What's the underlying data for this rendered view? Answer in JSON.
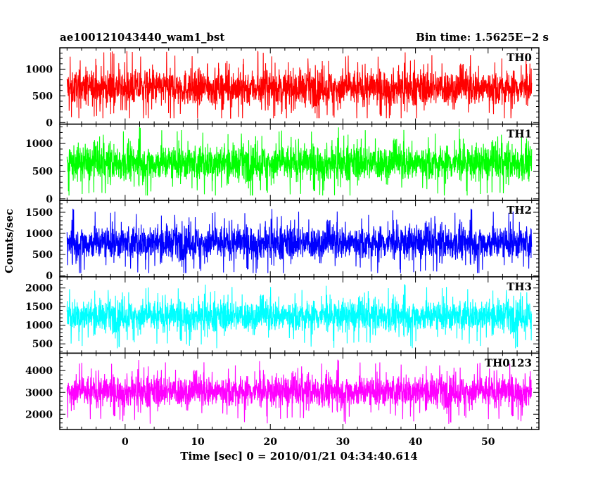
{
  "chart_data": {
    "type": "line",
    "title_left": "ae100121043440_wam1_bst",
    "title_right": "Bin time: 1.5625E−2 s",
    "xlabel": "Time [sec] 0 = 2010/01/21 04:34:40.614",
    "ylabel": "Counts/sec",
    "xlim": [
      -9,
      57
    ],
    "xticks": [
      0,
      10,
      20,
      30,
      40,
      50
    ],
    "data_xrange": [
      -8,
      56
    ],
    "panels": [
      {
        "name": "TH0",
        "color": "#ff0000",
        "ylim": [
          -30,
          1400
        ],
        "yticks": [
          0,
          500,
          1000
        ],
        "mean": 650,
        "spread": 300,
        "min": 80,
        "max": 1420
      },
      {
        "name": "TH1",
        "color": "#00ff00",
        "ylim": [
          -30,
          1350
        ],
        "yticks": [
          0,
          500,
          1000
        ],
        "mean": 650,
        "spread": 290,
        "min": 60,
        "max": 1350
      },
      {
        "name": "TH2",
        "color": "#0000ff",
        "ylim": [
          -30,
          1780
        ],
        "yticks": [
          0,
          500,
          1000,
          1500
        ],
        "mean": 780,
        "spread": 360,
        "min": 60,
        "max": 1760
      },
      {
        "name": "TH3",
        "color": "#00ffff",
        "ylim": [
          250,
          2300
        ],
        "yticks": [
          500,
          1000,
          1500,
          2000
        ],
        "mean": 1250,
        "spread": 380,
        "min": 350,
        "max": 2280
      },
      {
        "name": "TH0123",
        "color": "#ff00ff",
        "ylim": [
          1300,
          4800
        ],
        "yticks": [
          2000,
          3000,
          4000
        ],
        "mean": 3050,
        "spread": 650,
        "min": 1350,
        "max": 4750
      }
    ]
  }
}
